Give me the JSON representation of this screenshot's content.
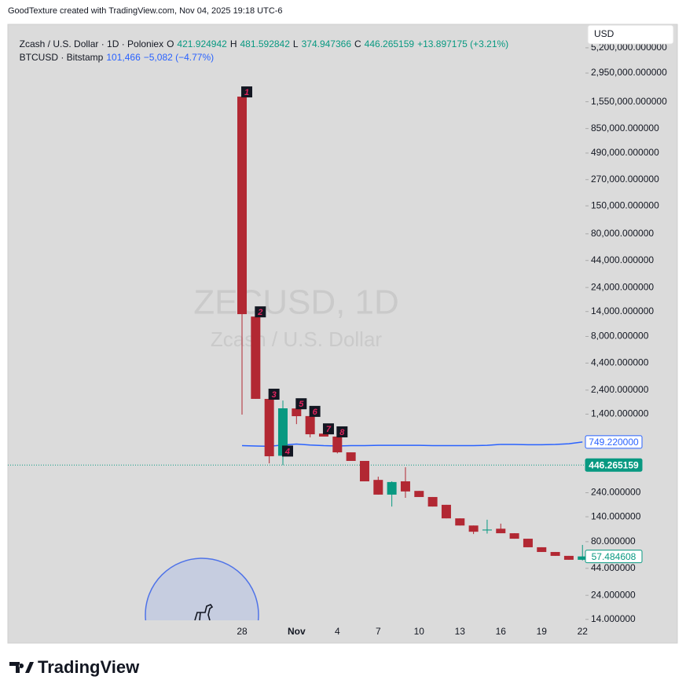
{
  "header": {
    "credit": "GoodTexture created with TradingView.com, Nov 04, 2025 19:18 UTC-6",
    "currency": "USD",
    "logo": "TradingView"
  },
  "chart_data": {
    "type": "candlestick",
    "title": "Zcash / U.S. Dollar · 1D · Poloniex",
    "ohlc_legend": [
      [
        "O",
        "421.924942"
      ],
      [
        "H",
        "481.592842"
      ],
      [
        "L",
        "374.947366"
      ],
      [
        "C",
        "446.265159"
      ]
    ],
    "change": "+13.897175 (+3.21%)",
    "watermark": [
      "ZECUSD, 1D",
      "Zcash / U.S. Dollar"
    ],
    "categories": [
      "28",
      null,
      null,
      null,
      "Nov",
      null,
      null,
      "4",
      null,
      null,
      "7",
      null,
      null,
      "10",
      null,
      null,
      "13",
      null,
      null,
      "16",
      null,
      null,
      "19",
      null,
      null,
      "22"
    ],
    "open": [
      1739000,
      12500,
      1970,
      550,
      1590,
      1340,
      905,
      846,
      594,
      490,
      320,
      230,
      310,
      250,
      218,
      183,
      135,
      115,
      103,
      107,
      96.7,
      85.5,
      70.6,
      63.5,
      58.2,
      53.3
    ],
    "high": [
      1739000,
      12500,
      1970,
      1900,
      1836,
      1340,
      905,
      891,
      594,
      490,
      344,
      310,
      425,
      250,
      218,
      183,
      135,
      115,
      131,
      120,
      96.7,
      85.5,
      70.6,
      63.5,
      58.2,
      74.4
    ],
    "low": [
      1386,
      1972,
      464,
      446,
      1119,
      832,
      846,
      580,
      490,
      310,
      230,
      176,
      214,
      218,
      176,
      135,
      115,
      95,
      96,
      96.7,
      85.5,
      70.6,
      63.5,
      58.2,
      53.3,
      52.5
    ],
    "close": [
      13200,
      1972,
      544,
      1595,
      1337,
      891,
      846,
      594,
      490,
      310,
      230,
      305,
      247,
      218,
      176,
      135,
      115,
      100,
      105,
      96.7,
      85.5,
      70.6,
      63.5,
      58.2,
      53.3,
      57.484608
    ],
    "up_color": "#089981",
    "down_color": "#b22833",
    "markers": [
      "1",
      "2",
      "3",
      "4",
      "5",
      "6",
      "7",
      "8"
    ],
    "series": [
      {
        "name": "BTCUSD · Bitstamp",
        "color": "#2962ff",
        "last": "101,466",
        "change": "−5,082 (−4.77%)",
        "values": [
          690,
          685,
          680,
          700,
          715,
          700,
          690,
          685,
          690,
          690,
          695,
          695,
          695,
          695,
          690,
          690,
          690,
          690,
          695,
          710,
          710,
          705,
          705,
          710,
          720,
          749.22
        ],
        "value_labels": [
          null,
          null,
          null,
          null,
          null,
          null,
          null,
          null,
          null,
          null,
          null,
          null,
          null,
          null,
          null,
          null,
          null,
          null,
          null,
          null,
          null,
          null,
          null,
          null,
          null,
          "749.220000"
        ]
      }
    ],
    "last_price": 446.265159,
    "log_scale": true,
    "ylim": [
      13.7,
      8650000
    ],
    "yticks": [
      {
        "value": 5200000,
        "label": "5,200,000.000000"
      },
      {
        "value": 2950000,
        "label": "2,950,000.000000"
      },
      {
        "value": 1550000,
        "label": "1,550,000.000000"
      },
      {
        "value": 850000,
        "label": "850,000.000000"
      },
      {
        "value": 490000,
        "label": "490,000.000000"
      },
      {
        "value": 270000,
        "label": "270,000.000000"
      },
      {
        "value": 150000,
        "label": "150,000.000000"
      },
      {
        "value": 80000,
        "label": "80,000.000000"
      },
      {
        "value": 44000,
        "label": "44,000.000000"
      },
      {
        "value": 24000,
        "label": "24,000.000000"
      },
      {
        "value": 14000,
        "label": "14,000.000000"
      },
      {
        "value": 8000,
        "label": "8,000.000000"
      },
      {
        "value": 4400,
        "label": "4,400.000000"
      },
      {
        "value": 2400,
        "label": "2,400.000000"
      },
      {
        "value": 1400,
        "label": "1,400.000000"
      },
      {
        "value": 240,
        "label": "240.000000"
      },
      {
        "value": 140,
        "label": "140.000000"
      },
      {
        "value": 80,
        "label": "80.000000"
      },
      {
        "value": 44,
        "label": "44.000000"
      },
      {
        "value": 24,
        "label": "24.000000"
      },
      {
        "value": 14,
        "label": "14.000000"
      }
    ]
  }
}
